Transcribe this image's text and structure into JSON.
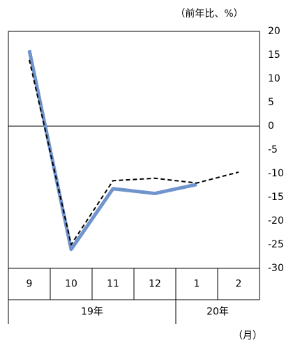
{
  "chart_data": {
    "type": "line",
    "unit_label": "（前年比、%）",
    "x_unit_label": "（月）",
    "categories": [
      "9",
      "10",
      "11",
      "12",
      "1",
      "2"
    ],
    "groups": [
      {
        "label": "19年",
        "span": 4
      },
      {
        "label": "20年",
        "span": 2
      }
    ],
    "series": [
      {
        "color": "#000000",
        "dash": true,
        "width": 2,
        "values": [
          14,
          -25,
          -11.5,
          -11,
          -12,
          -9.7
        ]
      },
      {
        "color": "#6f93cc",
        "dash": false,
        "width": 5,
        "values": [
          16,
          -26,
          -13.2,
          -14.2,
          -12.3,
          null
        ]
      }
    ],
    "ylim": [
      -30,
      20
    ],
    "yticks": [
      20,
      15,
      10,
      5,
      0,
      -5,
      -10,
      -15,
      -20,
      -25,
      -30
    ]
  }
}
